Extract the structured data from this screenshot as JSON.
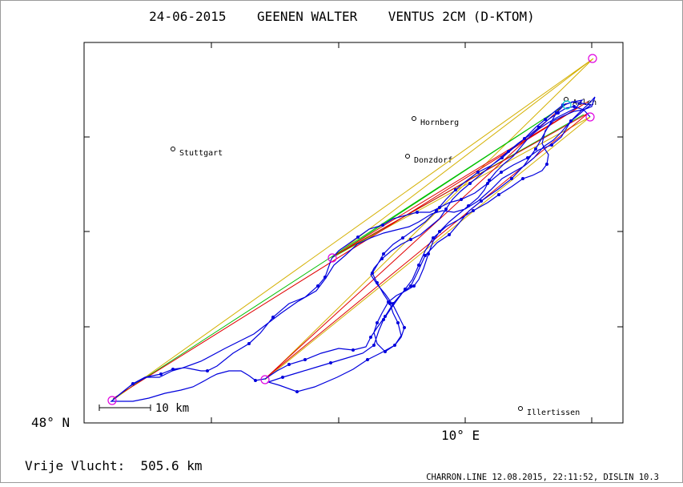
{
  "header": {
    "title": "24-06-2015    GEENEN WALTER    VENTUS 2CM (D-KTOM)"
  },
  "axes": {
    "lat_label": "48° N",
    "lon_label": "10° E"
  },
  "scale_bar": {
    "label": "10 km"
  },
  "footer": {
    "flight_label": "Vrije Vlucht:  505.6 km",
    "credits": "CHARRON.LINE 12.08.2015, 22:11:52, DISLIN 10.3"
  },
  "towns": [
    {
      "name": "Stuttgart"
    },
    {
      "name": "Hornberg"
    },
    {
      "name": "Donzdorf"
    },
    {
      "name": "Aalen"
    },
    {
      "name": "Illertissen"
    }
  ],
  "colors": {
    "track": "#0000dd",
    "turnpoint": "#e000e0",
    "leg_outer": "#d4b000",
    "leg_inner": "#e00000",
    "leg_green": "#00c000",
    "frame": "#000000"
  }
}
